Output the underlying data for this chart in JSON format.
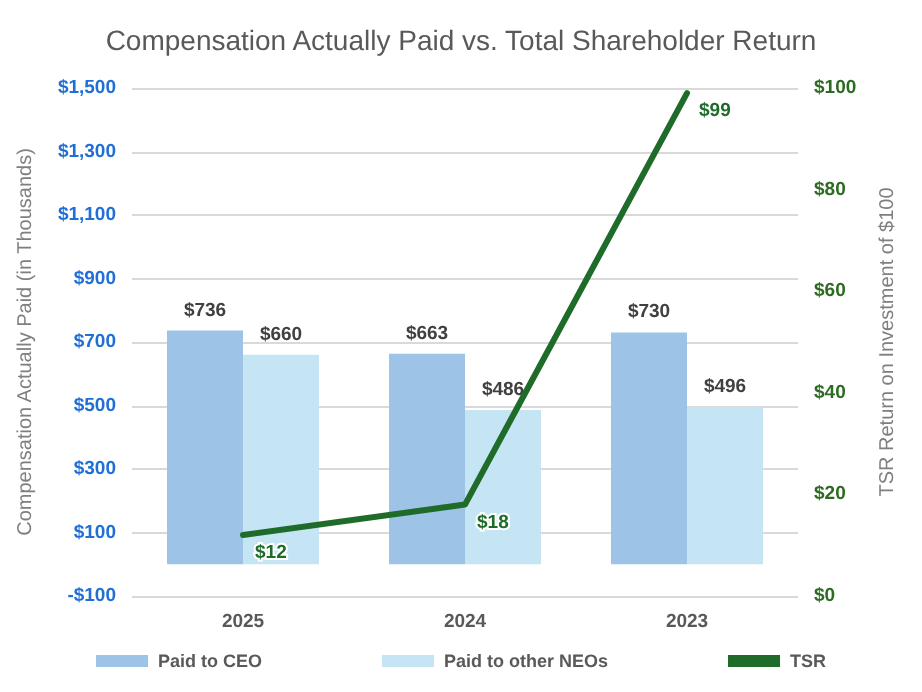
{
  "chart_data": {
    "type": "bar",
    "title": "Compensation Actually Paid vs. Total Shareholder Return",
    "categories": [
      "2025",
      "2024",
      "2023"
    ],
    "series": [
      {
        "name": "Paid to CEO",
        "color": "#9dc3e6",
        "values": [
          736,
          663,
          730
        ],
        "value_labels": [
          "$736",
          "$663",
          "$730"
        ]
      },
      {
        "name": "Paid to other NEOs",
        "color": "#c5e5f5",
        "values": [
          660,
          486,
          496
        ],
        "value_labels": [
          "$660",
          "$486",
          "$496"
        ]
      },
      {
        "name": "TSR",
        "type": "line",
        "axis": "y2",
        "color": "#1e6b2a",
        "values": [
          12,
          18,
          99
        ],
        "value_labels": [
          "$12",
          "$18",
          "$99"
        ]
      }
    ],
    "ylabel": "Compensation Actually Paid (in Thousands)",
    "y2label": "TSR Return on Investment of $100",
    "ylim": [
      -100,
      1500
    ],
    "yticks": [
      {
        "value": -100,
        "label": "-$100"
      },
      {
        "value": 100,
        "label": "$100"
      },
      {
        "value": 300,
        "label": "$300"
      },
      {
        "value": 500,
        "label": "$500"
      },
      {
        "value": 700,
        "label": "$700"
      },
      {
        "value": 900,
        "label": "$900"
      },
      {
        "value": 1100,
        "label": "$1,100"
      },
      {
        "value": 1300,
        "label": "$1,300"
      },
      {
        "value": 1500,
        "label": "$1,500"
      }
    ],
    "y2lim": [
      0,
      100
    ],
    "y2ticks": [
      {
        "value": 0,
        "label": "$0"
      },
      {
        "value": 20,
        "label": "$20"
      },
      {
        "value": 40,
        "label": "$40"
      },
      {
        "value": 60,
        "label": "$60"
      },
      {
        "value": 80,
        "label": "$80"
      },
      {
        "value": 100,
        "label": "$100"
      }
    ],
    "grid": "y",
    "legend": "bottom",
    "marker": "none"
  }
}
